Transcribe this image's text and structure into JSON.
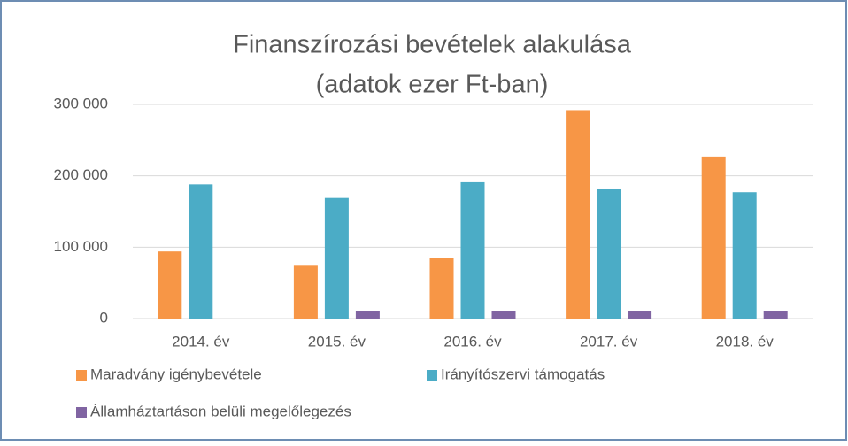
{
  "chart_data": {
    "type": "bar",
    "title": "Finanszírozási bevételek alakulása",
    "subtitle": "(adatok ezer Ft-ban)",
    "categories": [
      "2014. év",
      "2015. év",
      "2016. év",
      "2017. év",
      "2018. év"
    ],
    "series": [
      {
        "name": "Maradvány igénybevétele",
        "color": "#f79646",
        "values": [
          94000,
          74000,
          85000,
          292000,
          227000
        ]
      },
      {
        "name": "Irányítószervi támogatás",
        "color": "#4bacc6",
        "values": [
          188000,
          169000,
          191000,
          181000,
          177000
        ]
      },
      {
        "name": "Államháztartáson belüli megelőlegezés",
        "color": "#8064a2",
        "values": [
          0,
          10000,
          10000,
          10000,
          10000
        ]
      }
    ],
    "ylim": [
      0,
      300000
    ],
    "yticks": [
      0,
      {
        "value": 100000,
        "label": "100 000"
      },
      {
        "value": 200000,
        "label": "200 000"
      },
      {
        "value": 300000,
        "label": "300 000"
      }
    ],
    "grid": true
  }
}
